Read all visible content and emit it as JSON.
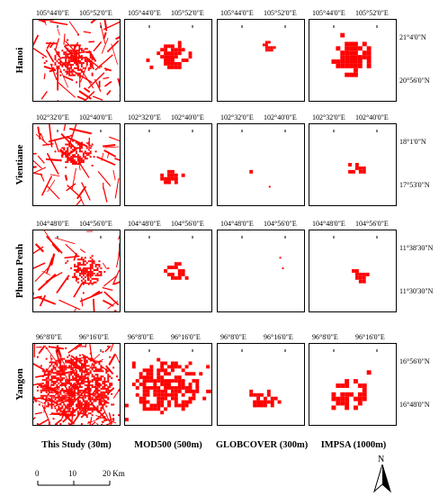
{
  "rows": [
    {
      "city": "Hanoi",
      "x_ticks": [
        "105°44'0\"E",
        "105°52'0\"E"
      ],
      "y_ticks": [
        "21°4'0\"N",
        "20°56'0\"N"
      ],
      "globcover_ticks": [
        "105°44'0\"E",
        "105°52'0\"E"
      ]
    },
    {
      "city": "Vientiane",
      "x_ticks": [
        "102°32'0\"E",
        "102°40'0\"E"
      ],
      "y_ticks": [
        "18°1'0\"N",
        "17°53'0\"N"
      ]
    },
    {
      "city": "Phnom Penh",
      "x_ticks": [
        "104°48'0\"E",
        "104°56'0\"E"
      ],
      "y_ticks": [
        "11°38'30\"N",
        "11°30'30\"N"
      ]
    },
    {
      "city": "Yangon",
      "x_ticks": [
        "96°8'0\"E",
        "96°16'0\"E"
      ],
      "y_ticks": [
        "16°56'0\"N",
        "16°48'0\"N"
      ]
    }
  ],
  "columns": [
    "This Study (30m)",
    "MOD500 (500m)",
    "GLOBCOVER (300m)",
    "IMPSA (1000m)"
  ],
  "scale": {
    "labels": [
      "0",
      "10",
      "20 Km"
    ]
  },
  "north_label": "N",
  "colors": {
    "urban": "#ff0000",
    "border": "#000000"
  }
}
